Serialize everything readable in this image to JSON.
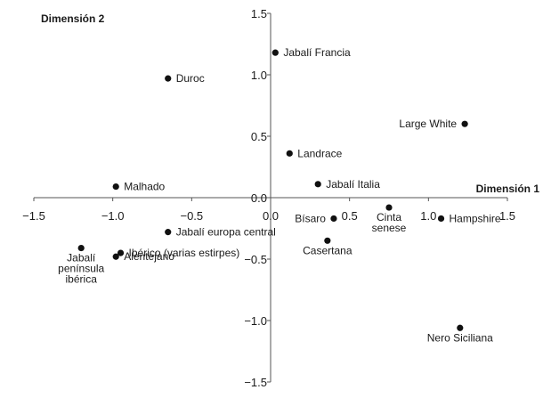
{
  "chart_data": {
    "type": "scatter",
    "xlabel": "Dimensión 1",
    "ylabel": "Dimensión 2",
    "xlim": [
      -1.5,
      1.5
    ],
    "ylim": [
      -1.5,
      1.5
    ],
    "x_ticks": [
      "−1.5",
      "−1.0",
      "−0.5",
      "0.0",
      "0.5",
      "1.0",
      "1.5"
    ],
    "y_ticks": [
      "1.5",
      "1.0",
      "0.5",
      "0.0",
      "−0.5",
      "−1.0",
      "−1.5"
    ],
    "grid": false,
    "points": [
      {
        "label": [
          "Jabalí Francia"
        ],
        "x": 0.03,
        "y": 1.18,
        "anchor": "start"
      },
      {
        "label": [
          "Duroc"
        ],
        "x": -0.65,
        "y": 0.97,
        "anchor": "start"
      },
      {
        "label": [
          "Large White"
        ],
        "x": 1.23,
        "y": 0.6,
        "anchor": "end"
      },
      {
        "label": [
          "Landrace"
        ],
        "x": 0.12,
        "y": 0.36,
        "anchor": "start"
      },
      {
        "label": [
          "Malhado"
        ],
        "x": -0.98,
        "y": 0.09,
        "anchor": "start"
      },
      {
        "label": [
          "Jabalí Italia"
        ],
        "x": 0.3,
        "y": 0.11,
        "anchor": "start"
      },
      {
        "label": [
          "Bísaro"
        ],
        "x": 0.4,
        "y": -0.17,
        "anchor": "end"
      },
      {
        "label": [
          "Cinta",
          "senese"
        ],
        "x": 0.75,
        "y": -0.08,
        "anchor": "middle"
      },
      {
        "label": [
          "Hampshire"
        ],
        "x": 1.08,
        "y": -0.17,
        "anchor": "start"
      },
      {
        "label": [
          "Jabalí europa central"
        ],
        "x": -0.65,
        "y": -0.28,
        "anchor": "start"
      },
      {
        "label": [
          "Casertana"
        ],
        "x": 0.36,
        "y": -0.35,
        "anchor": "middle"
      },
      {
        "label": [
          "Jabalí",
          "península",
          "ibérica"
        ],
        "x": -1.2,
        "y": -0.41,
        "anchor": "middle"
      },
      {
        "label": [
          "Ibérico (varias estirpes)"
        ],
        "x": -0.95,
        "y": -0.45,
        "anchor": "start"
      },
      {
        "label": [
          "Alentejano"
        ],
        "x": -0.98,
        "y": -0.48,
        "anchor": "start"
      },
      {
        "label": [
          "Nero Siciliana"
        ],
        "x": 1.2,
        "y": -1.06,
        "anchor": "middle"
      }
    ]
  }
}
